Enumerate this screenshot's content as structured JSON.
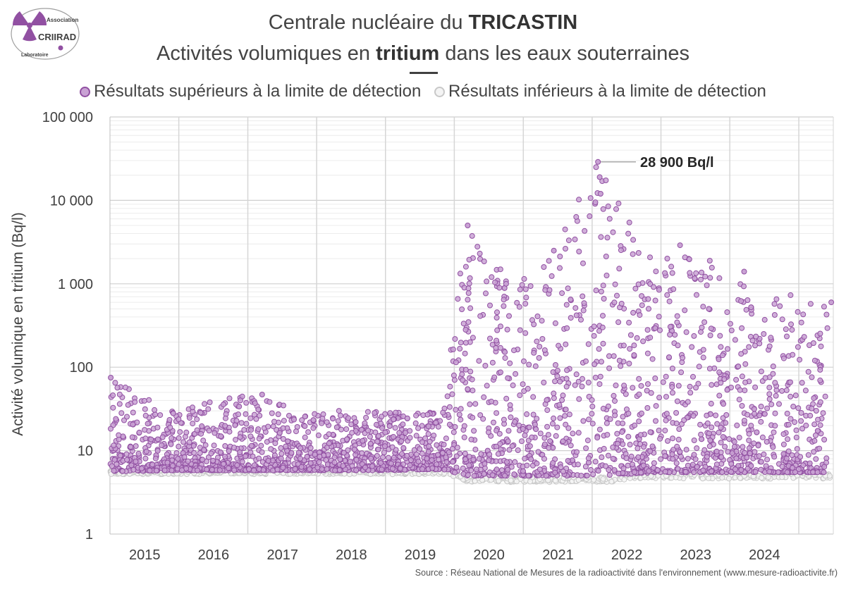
{
  "logo": {
    "association": "Association",
    "name": "CRIIRAD",
    "laboratoire": "Laboratoire"
  },
  "header": {
    "title_line1_prefix": "Centrale nucléaire du ",
    "title_line1_bold": "TRICASTIN",
    "title_line2_prefix": "Activités volumiques en ",
    "title_line2_bold": "tritium",
    "title_line2_suffix": " dans les eaux souterraines"
  },
  "legend": {
    "above": "Résultats supérieurs à la limite de détection",
    "below": "Résultats inférieurs à la limite de détection"
  },
  "source": "Source : Réseau National de Mesures de la radioactivité dans l'environnement (www.mesure-radioactivite.fr)",
  "chart_data": {
    "type": "scatter",
    "ylabel": "Activité volumique en tritium (Bq/l)",
    "yscale": "log",
    "ylim": [
      1,
      100000
    ],
    "y_ticks": [
      1,
      10,
      100,
      1000,
      10000,
      100000
    ],
    "y_tick_labels": [
      "1",
      "10",
      "100",
      "1 000",
      "10 000",
      "100 000"
    ],
    "xlim": [
      "2014-07-01",
      "2024-12-31"
    ],
    "x_tick_labels": [
      "2015",
      "2016",
      "2017",
      "2018",
      "2019",
      "2020",
      "2021",
      "2022",
      "2023",
      "2024"
    ],
    "grid": true,
    "legend_position": "top",
    "colors": {
      "above": "#9150a2",
      "above_fill": "#c9a2d4",
      "below": "#c8c8c8",
      "below_fill": "#f4f4f4"
    },
    "annotation": {
      "text": "28 900 Bq/l",
      "x": "2021-08-01",
      "y": 28900
    },
    "series": [
      {
        "name": "Résultats supérieurs à la limite de détection",
        "envelope": [
          {
            "x": "2014-07-01",
            "min": 5.6,
            "max": 75
          },
          {
            "x": "2015-06-01",
            "min": 5.8,
            "max": 30
          },
          {
            "x": "2016-06-01",
            "min": 5.8,
            "max": 47
          },
          {
            "x": "2017-06-01",
            "min": 5.8,
            "max": 30
          },
          {
            "x": "2018-06-01",
            "min": 5.8,
            "max": 31
          },
          {
            "x": "2019-05-01",
            "min": 6,
            "max": 28
          },
          {
            "x": "2019-09-01",
            "min": 5,
            "max": 5000
          },
          {
            "x": "2020-06-01",
            "min": 5,
            "max": 1000
          },
          {
            "x": "2020-12-01",
            "min": 5,
            "max": 2500
          },
          {
            "x": "2021-08-01",
            "min": 5,
            "max": 28900
          },
          {
            "x": "2022-06-01",
            "min": 5.5,
            "max": 1700
          },
          {
            "x": "2022-10-01",
            "min": 5.5,
            "max": 2900
          },
          {
            "x": "2023-09-01",
            "min": 5.5,
            "max": 1400
          },
          {
            "x": "2024-12-01",
            "min": 5.5,
            "max": 600
          }
        ],
        "points": [
          {
            "x": "2014-07-05",
            "y": 75
          },
          {
            "x": "2016-09-15",
            "y": 47
          },
          {
            "x": "2019-09-10",
            "y": 5000
          },
          {
            "x": "2020-04-01",
            "y": 1000
          },
          {
            "x": "2020-12-10",
            "y": 2500
          },
          {
            "x": "2021-08-01",
            "y": 28900
          },
          {
            "x": "2021-08-10",
            "y": 19000
          },
          {
            "x": "2021-08-15",
            "y": 12000
          },
          {
            "x": "2022-10-10",
            "y": 2900
          },
          {
            "x": "2023-09-15",
            "y": 1400
          },
          {
            "x": "2024-12-20",
            "y": 600
          }
        ]
      },
      {
        "name": "Résultats inférieurs à la limite de détection",
        "envelope": [
          {
            "x": "2014-07-01",
            "min": 5.2,
            "max": 5.8
          },
          {
            "x": "2019-06-01",
            "min": 5.2,
            "max": 6
          },
          {
            "x": "2019-09-01",
            "min": 4.2,
            "max": 4.8
          },
          {
            "x": "2021-12-01",
            "min": 4.2,
            "max": 4.8
          },
          {
            "x": "2022-01-01",
            "min": 4.6,
            "max": 5.4
          },
          {
            "x": "2024-12-31",
            "min": 4.6,
            "max": 5.4
          }
        ]
      }
    ]
  }
}
